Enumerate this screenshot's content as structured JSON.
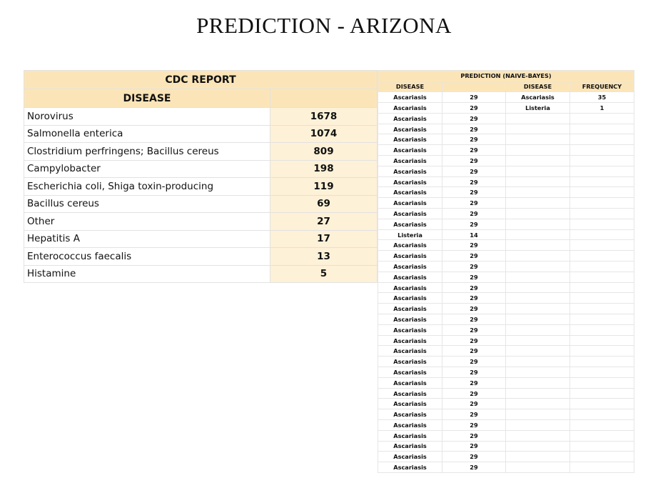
{
  "title": "PREDICTION - ARIZONA",
  "cdc": {
    "title": "CDC REPORT",
    "disease_header": "DISEASE",
    "count_header": "",
    "rows": [
      {
        "disease": "Norovirus",
        "count": "1678"
      },
      {
        "disease": "Salmonella enterica",
        "count": "1074"
      },
      {
        "disease": "Clostridium perfringens; Bacillus cereus",
        "count": "809"
      },
      {
        "disease": "Campylobacter",
        "count": "198"
      },
      {
        "disease": "Escherichia coli, Shiga toxin-producing",
        "count": "119"
      },
      {
        "disease": "Bacillus cereus",
        "count": "69"
      },
      {
        "disease": "Other",
        "count": "27"
      },
      {
        "disease": "Hepatitis A",
        "count": "17"
      },
      {
        "disease": "Enterococcus faecalis",
        "count": "13"
      },
      {
        "disease": "Histamine",
        "count": "5"
      }
    ]
  },
  "prediction": {
    "title": "PREDICTION (NAIVE-BAYES)",
    "headers": [
      "DISEASE",
      "",
      "DISEASE",
      "FREQUENCY"
    ],
    "rows": [
      [
        "Ascariasis",
        "29",
        "Ascariasis",
        "35"
      ],
      [
        "Ascariasis",
        "29",
        "Listeria",
        "1"
      ],
      [
        "Ascariasis",
        "29",
        "",
        ""
      ],
      [
        "Ascariasis",
        "29",
        "",
        ""
      ],
      [
        "Ascariasis",
        "29",
        "",
        ""
      ],
      [
        "Ascariasis",
        "29",
        "",
        ""
      ],
      [
        "Ascariasis",
        "29",
        "",
        ""
      ],
      [
        "Ascariasis",
        "29",
        "",
        ""
      ],
      [
        "Ascariasis",
        "29",
        "",
        ""
      ],
      [
        "Ascariasis",
        "29",
        "",
        ""
      ],
      [
        "Ascariasis",
        "29",
        "",
        ""
      ],
      [
        "Ascariasis",
        "29",
        "",
        ""
      ],
      [
        "Ascariasis",
        "29",
        "",
        ""
      ],
      [
        "Listeria",
        "14",
        "",
        ""
      ],
      [
        "Ascariasis",
        "29",
        "",
        ""
      ],
      [
        "Ascariasis",
        "29",
        "",
        ""
      ],
      [
        "Ascariasis",
        "29",
        "",
        ""
      ],
      [
        "Ascariasis",
        "29",
        "",
        ""
      ],
      [
        "Ascariasis",
        "29",
        "",
        ""
      ],
      [
        "Ascariasis",
        "29",
        "",
        ""
      ],
      [
        "Ascariasis",
        "29",
        "",
        ""
      ],
      [
        "Ascariasis",
        "29",
        "",
        ""
      ],
      [
        "Ascariasis",
        "29",
        "",
        ""
      ],
      [
        "Ascariasis",
        "29",
        "",
        ""
      ],
      [
        "Ascariasis",
        "29",
        "",
        ""
      ],
      [
        "Ascariasis",
        "29",
        "",
        ""
      ],
      [
        "Ascariasis",
        "29",
        "",
        ""
      ],
      [
        "Ascariasis",
        "29",
        "",
        ""
      ],
      [
        "Ascariasis",
        "29",
        "",
        ""
      ],
      [
        "Ascariasis",
        "29",
        "",
        ""
      ],
      [
        "Ascariasis",
        "29",
        "",
        ""
      ],
      [
        "Ascariasis",
        "29",
        "",
        ""
      ],
      [
        "Ascariasis",
        "29",
        "",
        ""
      ],
      [
        "Ascariasis",
        "29",
        "",
        ""
      ],
      [
        "Ascariasis",
        "29",
        "",
        ""
      ],
      [
        "Ascariasis",
        "29",
        "",
        ""
      ]
    ]
  }
}
